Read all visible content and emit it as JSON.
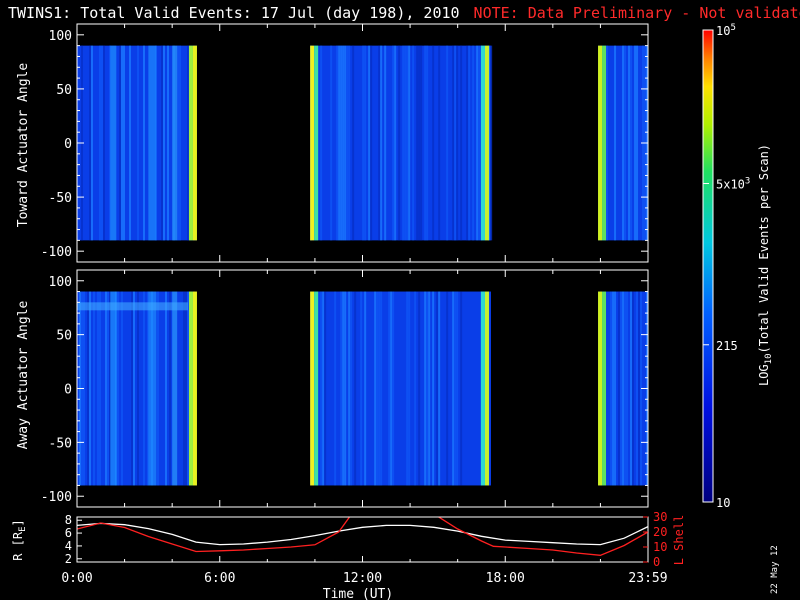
{
  "title": "TWINS1: Total Valid Events: 17 Jul (day 198), 2010",
  "note": "NOTE: Data Preliminary - Not validated",
  "stamp": "22 May 12",
  "colors": {
    "note": "#ff2a2a",
    "background": "#000000",
    "axis": "#ffffff",
    "lshell": "#ff2020"
  },
  "chart_data": [
    {
      "type": "heatmap",
      "ylabel": "Toward Actuator Angle",
      "ylim": [
        -110,
        110
      ],
      "yticks": [
        100,
        50,
        0,
        -50,
        -100
      ],
      "xlim_hours": [
        0,
        24
      ],
      "angle_range": [
        -90,
        90
      ],
      "data_blocks_hours": [
        [
          0,
          5.0
        ],
        [
          9.8,
          17.4
        ],
        [
          21.9,
          24
        ]
      ],
      "edge_intensity": "high (yellow/green) at block boundaries, low (blue) inside"
    },
    {
      "type": "heatmap",
      "ylabel": "Away Actuator Angle",
      "ylim": [
        -110,
        110
      ],
      "yticks": [
        100,
        50,
        0,
        -50,
        -100
      ],
      "xlim_hours": [
        0,
        24
      ],
      "angle_range": [
        -90,
        90
      ],
      "data_blocks_hours": [
        [
          0,
          5.0
        ],
        [
          9.8,
          17.4
        ],
        [
          21.9,
          24
        ]
      ]
    },
    {
      "type": "line",
      "xlabel": "Time (UT)",
      "xticks": [
        "0:00",
        "6:00",
        "12:00",
        "18:00",
        "23:59"
      ],
      "ylabel_left": "R [R",
      "ylabel_left_sub": "E",
      "ylabel_left_close": "]",
      "ylabel_right": "L Shell",
      "ylim_left": [
        1.5,
        8.5
      ],
      "yticks_left": [
        8,
        6,
        4,
        2
      ],
      "ylim_right": [
        0,
        30
      ],
      "yticks_right": [
        30,
        20,
        10,
        0
      ],
      "series": [
        {
          "axis": "left",
          "x": [
            0,
            1,
            2,
            3,
            4,
            5,
            6,
            7,
            8,
            9,
            10,
            11,
            12,
            13,
            14,
            15,
            16,
            17,
            18,
            19,
            20,
            21,
            22,
            23,
            24
          ],
          "y": [
            7.2,
            7.5,
            7.3,
            6.7,
            5.8,
            4.6,
            4.2,
            4.3,
            4.6,
            5.0,
            5.6,
            6.3,
            6.9,
            7.2,
            7.2,
            6.9,
            6.3,
            5.5,
            4.9,
            4.7,
            4.5,
            4.3,
            4.2,
            5.2,
            7.0
          ]
        },
        {
          "axis": "right",
          "x": [
            0,
            1,
            2,
            3,
            4,
            5,
            6,
            7,
            8,
            9,
            10,
            11,
            11.5,
            15.1,
            16,
            17,
            17.5,
            18,
            19,
            20,
            21,
            22,
            23,
            24
          ],
          "y": [
            22,
            26,
            23,
            17,
            12,
            7,
            7.5,
            8,
            9,
            10,
            11.5,
            20,
            31,
            31,
            22,
            14,
            10.5,
            10,
            9,
            8,
            6,
            4.5,
            11,
            20
          ]
        }
      ]
    },
    {
      "type": "colorbar",
      "label_log": "LOG",
      "label_sub": "10",
      "label_rest": "(Total Valid Events per Scan)",
      "range": [
        10,
        100000
      ],
      "ticks": [
        {
          "value": 10,
          "label": "10"
        },
        {
          "value": 215,
          "label": "215"
        },
        {
          "value": 5000,
          "label": "5x10",
          "sup": "3"
        },
        {
          "value": 100000,
          "label": "10",
          "sup": "5"
        }
      ]
    }
  ]
}
